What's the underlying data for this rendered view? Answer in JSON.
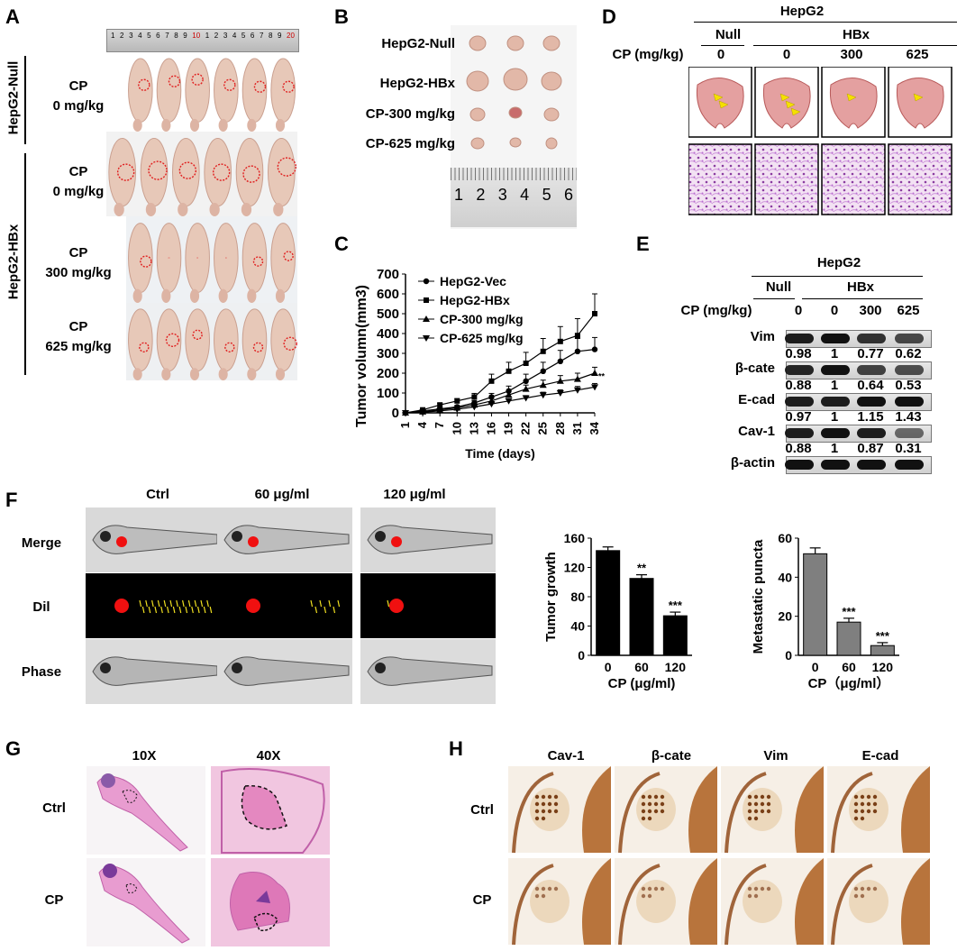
{
  "panel_labels": [
    "A",
    "B",
    "C",
    "D",
    "E",
    "F",
    "G",
    "H"
  ],
  "panelA": {
    "ruler_numbers": [
      "1",
      "2",
      "3",
      "4",
      "5",
      "6",
      "7",
      "8",
      "9",
      "10",
      "1",
      "2",
      "3",
      "4",
      "5",
      "6",
      "7",
      "8",
      "9",
      "20"
    ],
    "group_null": "HepG2-Null",
    "group_hbx": "HepG2-HBx",
    "rows": [
      {
        "line1": "CP",
        "line2": "0 mg/kg"
      },
      {
        "line1": "CP",
        "line2": "0 mg/kg"
      },
      {
        "line1": "CP",
        "line2": "300 mg/kg"
      },
      {
        "line1": "CP",
        "line2": "625 mg/kg"
      }
    ]
  },
  "panelB": {
    "rows": [
      "HepG2-Null",
      "HepG2-HBx",
      "CP-300 mg/kg",
      "CP-625 mg/kg"
    ],
    "ruler": [
      "1",
      "2",
      "3",
      "4",
      "5",
      "6"
    ]
  },
  "panelD": {
    "title": "HepG2",
    "null_label": "Null",
    "hbx_label": "HBx",
    "cp_label": "CP (mg/kg)",
    "doses": [
      "0",
      "0",
      "300",
      "625"
    ]
  },
  "panelE": {
    "title": "HepG2",
    "null_label": "Null",
    "hbx_label": "HBx",
    "cp_label": "CP (mg/kg)",
    "doses": [
      "0",
      "0",
      "300",
      "625"
    ],
    "rows": [
      {
        "name": "Vim",
        "values": [
          "0.98",
          "1",
          "0.77",
          "0.62"
        ],
        "intensity": [
          0.9,
          1.0,
          0.75,
          0.6
        ]
      },
      {
        "name": "β-cate",
        "values": [
          "0.88",
          "1",
          "0.64",
          "0.53"
        ],
        "intensity": [
          0.85,
          1.0,
          0.65,
          0.55
        ]
      },
      {
        "name": "E-cad",
        "values": [
          "0.97",
          "1",
          "1.15",
          "1.43"
        ],
        "intensity": [
          0.9,
          0.9,
          1.0,
          1.0
        ]
      },
      {
        "name": "Cav-1",
        "values": [
          "0.88",
          "1",
          "0.87",
          "0.31"
        ],
        "intensity": [
          0.9,
          1.0,
          0.9,
          0.35
        ]
      },
      {
        "name": "β-actin",
        "values": [],
        "intensity": [
          1,
          1,
          1,
          1
        ]
      }
    ]
  },
  "panelF": {
    "cols": [
      "Ctrl",
      "60 μg/ml",
      "120 μg/ml"
    ],
    "rows": [
      "Merge",
      "Dil",
      "Phase"
    ]
  },
  "panelG": {
    "cols": [
      "10X",
      "40X"
    ],
    "rows": [
      "Ctrl",
      "CP"
    ]
  },
  "panelH": {
    "cols": [
      "Cav-1",
      "β-cate",
      "Vim",
      "E-cad"
    ],
    "rows": [
      "Ctrl",
      "CP"
    ]
  },
  "chart_data": [
    {
      "type": "line",
      "panel": "C",
      "ylabel": "Tumor volumn(mm3)",
      "xlabel": "Time (days)",
      "x": [
        1,
        4,
        7,
        10,
        13,
        16,
        19,
        22,
        25,
        28,
        31,
        34
      ],
      "ylim": [
        0,
        700
      ],
      "yticks": [
        0,
        100,
        200,
        300,
        400,
        500,
        600,
        700
      ],
      "series": [
        {
          "name": "HepG2-Vec",
          "marker": "circle",
          "values": [
            0,
            10,
            20,
            30,
            50,
            80,
            110,
            160,
            210,
            260,
            310,
            320
          ],
          "err": [
            0,
            3,
            5,
            8,
            12,
            18,
            25,
            35,
            45,
            55,
            65,
            60
          ]
        },
        {
          "name": "HepG2-HBx",
          "marker": "square",
          "values": [
            0,
            15,
            40,
            60,
            80,
            160,
            210,
            250,
            310,
            360,
            390,
            500
          ],
          "err": [
            0,
            4,
            8,
            12,
            18,
            35,
            45,
            55,
            65,
            75,
            85,
            100
          ]
        },
        {
          "name": "CP-300 mg/kg",
          "marker": "triangle-up",
          "values": [
            0,
            5,
            15,
            25,
            40,
            60,
            90,
            120,
            140,
            160,
            170,
            200
          ],
          "err": [
            0,
            2,
            4,
            6,
            8,
            12,
            16,
            20,
            25,
            28,
            30,
            30
          ]
        },
        {
          "name": "CP-625 mg/kg",
          "marker": "triangle-down",
          "values": [
            0,
            3,
            10,
            18,
            30,
            45,
            60,
            75,
            90,
            100,
            115,
            130
          ],
          "err": [
            0,
            2,
            3,
            4,
            6,
            8,
            10,
            12,
            14,
            16,
            18,
            18
          ]
        }
      ],
      "annotation": "**"
    },
    {
      "type": "bar",
      "panel": "F-left",
      "ylabel": "Tumor growth",
      "xlabel": "CP (μg/ml)",
      "categories": [
        "0",
        "60",
        "120"
      ],
      "values": [
        143,
        105,
        54
      ],
      "err": [
        5,
        5,
        5
      ],
      "sig": [
        "",
        "**",
        "***"
      ],
      "ylim": [
        0,
        160
      ],
      "yticks": [
        0,
        40,
        80,
        120,
        160
      ],
      "color": "#000000"
    },
    {
      "type": "bar",
      "panel": "F-right",
      "ylabel": "Metastatic puncta",
      "xlabel": "CP（μg/ml）",
      "categories": [
        "0",
        "60",
        "120"
      ],
      "values": [
        52,
        17,
        5
      ],
      "err": [
        3,
        2,
        1.5
      ],
      "sig": [
        "",
        "***",
        "***"
      ],
      "ylim": [
        0,
        60
      ],
      "yticks": [
        0,
        20,
        40,
        60
      ],
      "color": "#7f7f7f"
    }
  ]
}
